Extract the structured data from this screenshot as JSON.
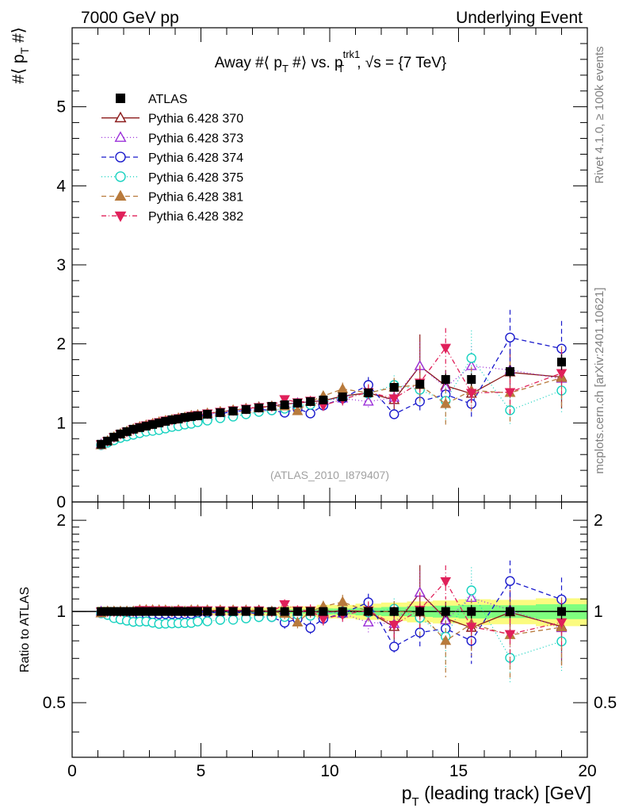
{
  "header": {
    "left": "7000 GeV pp",
    "right": "Underlying Event"
  },
  "side_labels": {
    "rivet": "Rivet 4.1.0, ≥ 100k events",
    "mcplots": "mcplots.cern.ch [arXiv:2401.10621]"
  },
  "chart_data": [
    {
      "type": "scatter",
      "panel": "main",
      "title": "Away #⟨ p_T #⟩ vs. p_T^trk1, √s = {7 TeV}",
      "title_parts": {
        "pre": "Away #⟨ p",
        "sub1": "T",
        "mid": " #⟩ vs. p",
        "sup2": "trk1",
        "sub2": "T",
        "post": ", √s = {7 TeV}"
      },
      "ylabel": "#⟨ p_T #⟩",
      "ylabel_parts": {
        "pre": "#⟨ p",
        "sub": "T",
        "post": " #⟩"
      },
      "watermark": "(ATLAS_2010_I879407)",
      "xlim": [
        0,
        20
      ],
      "ylim": [
        0,
        6
      ],
      "yticks": [
        0,
        1,
        2,
        3,
        4,
        5
      ],
      "x": [
        1.125,
        1.375,
        1.625,
        1.875,
        2.125,
        2.375,
        2.625,
        2.875,
        3.125,
        3.375,
        3.625,
        3.875,
        4.125,
        4.375,
        4.625,
        4.875,
        5.25,
        5.75,
        6.25,
        6.75,
        7.25,
        7.75,
        8.25,
        8.75,
        9.25,
        9.75,
        10.5,
        11.5,
        12.5,
        13.5,
        14.5,
        15.5,
        17.0,
        19.0
      ],
      "series": [
        {
          "name": "ATLAS",
          "color": "#000000",
          "marker": "square",
          "dash": "none",
          "line": false,
          "values": [
            0.73,
            0.77,
            0.82,
            0.86,
            0.89,
            0.92,
            0.94,
            0.96,
            0.98,
            1.0,
            1.02,
            1.04,
            1.05,
            1.07,
            1.08,
            1.09,
            1.11,
            1.13,
            1.15,
            1.17,
            1.19,
            1.21,
            1.23,
            1.25,
            1.27,
            1.29,
            1.33,
            1.38,
            1.45,
            1.49,
            1.55,
            1.55,
            1.65,
            1.77
          ],
          "errors": [
            0.01,
            0.01,
            0.01,
            0.01,
            0.01,
            0.01,
            0.01,
            0.01,
            0.01,
            0.01,
            0.01,
            0.01,
            0.01,
            0.01,
            0.01,
            0.01,
            0.01,
            0.01,
            0.01,
            0.01,
            0.01,
            0.01,
            0.02,
            0.02,
            0.02,
            0.03,
            0.03,
            0.04,
            0.05,
            0.06,
            0.07,
            0.08,
            0.08,
            0.1
          ]
        },
        {
          "name": "Pythia 6.428 370",
          "color": "#8b1a1a",
          "marker": "triangle-up-open",
          "dash": "none",
          "line": true,
          "values": [
            0.72,
            0.77,
            0.82,
            0.86,
            0.89,
            0.92,
            0.95,
            0.97,
            0.99,
            1.01,
            1.02,
            1.04,
            1.06,
            1.07,
            1.09,
            1.1,
            1.12,
            1.14,
            1.16,
            1.18,
            1.2,
            1.21,
            1.24,
            1.25,
            1.27,
            1.28,
            1.34,
            1.38,
            1.29,
            1.72,
            1.47,
            1.37,
            1.64,
            1.58
          ],
          "errors": [
            0.01,
            0.01,
            0.01,
            0.01,
            0.01,
            0.01,
            0.01,
            0.01,
            0.01,
            0.01,
            0.01,
            0.01,
            0.01,
            0.02,
            0.02,
            0.02,
            0.02,
            0.02,
            0.03,
            0.03,
            0.04,
            0.04,
            0.05,
            0.05,
            0.06,
            0.06,
            0.08,
            0.1,
            0.12,
            0.4,
            0.2,
            0.2,
            0.3,
            0.4
          ]
        },
        {
          "name": "Pythia 6.428 373",
          "color": "#9b30d9",
          "marker": "triangle-up-open",
          "dash": "1 3",
          "line": true,
          "values": [
            0.73,
            0.77,
            0.81,
            0.85,
            0.88,
            0.91,
            0.94,
            0.96,
            0.98,
            1.0,
            1.02,
            1.03,
            1.05,
            1.06,
            1.08,
            1.09,
            1.11,
            1.13,
            1.15,
            1.18,
            1.19,
            1.21,
            1.24,
            1.25,
            1.27,
            1.29,
            1.31,
            1.27,
            1.32,
            1.72,
            1.45,
            1.72,
            1.67,
            1.56
          ],
          "errors": [
            0.01,
            0.01,
            0.01,
            0.01,
            0.01,
            0.01,
            0.01,
            0.01,
            0.01,
            0.01,
            0.01,
            0.01,
            0.01,
            0.02,
            0.02,
            0.02,
            0.02,
            0.02,
            0.03,
            0.03,
            0.04,
            0.04,
            0.05,
            0.05,
            0.06,
            0.06,
            0.08,
            0.1,
            0.12,
            0.3,
            0.2,
            0.25,
            0.3,
            0.35
          ]
        },
        {
          "name": "Pythia 6.428 374",
          "color": "#1a1acc",
          "marker": "circle-open",
          "dash": "6 4",
          "line": true,
          "values": [
            0.72,
            0.76,
            0.8,
            0.84,
            0.87,
            0.9,
            0.92,
            0.94,
            0.96,
            0.98,
            1.0,
            1.02,
            1.03,
            1.05,
            1.06,
            1.08,
            1.1,
            1.12,
            1.14,
            1.16,
            1.17,
            1.16,
            1.13,
            1.18,
            1.12,
            1.22,
            1.31,
            1.48,
            1.11,
            1.27,
            1.36,
            1.24,
            2.08,
            1.94
          ],
          "errors": [
            0.01,
            0.01,
            0.01,
            0.01,
            0.01,
            0.01,
            0.01,
            0.01,
            0.01,
            0.01,
            0.01,
            0.01,
            0.01,
            0.02,
            0.02,
            0.02,
            0.02,
            0.02,
            0.03,
            0.03,
            0.04,
            0.04,
            0.05,
            0.05,
            0.06,
            0.06,
            0.08,
            0.1,
            0.06,
            0.15,
            0.18,
            0.2,
            0.35,
            0.35
          ]
        },
        {
          "name": "Pythia 6.428 375",
          "color": "#18d2c0",
          "marker": "circle-open",
          "dash": "1 3",
          "line": true,
          "values": [
            0.72,
            0.75,
            0.78,
            0.81,
            0.83,
            0.85,
            0.87,
            0.89,
            0.9,
            0.91,
            0.93,
            0.95,
            0.96,
            0.98,
            0.99,
            1.01,
            1.03,
            1.06,
            1.08,
            1.11,
            1.14,
            1.16,
            1.18,
            1.22,
            1.23,
            1.27,
            1.33,
            1.37,
            1.48,
            1.42,
            1.28,
            1.82,
            1.16,
            1.41
          ],
          "errors": [
            0.01,
            0.01,
            0.01,
            0.01,
            0.01,
            0.01,
            0.01,
            0.01,
            0.01,
            0.01,
            0.01,
            0.01,
            0.01,
            0.02,
            0.02,
            0.02,
            0.02,
            0.02,
            0.03,
            0.03,
            0.04,
            0.04,
            0.05,
            0.05,
            0.06,
            0.06,
            0.08,
            0.1,
            0.12,
            0.2,
            0.3,
            0.35,
            0.2,
            0.3
          ]
        },
        {
          "name": "Pythia 6.428 381",
          "color": "#b87a3c",
          "marker": "triangle-up-filled",
          "dash": "6 4",
          "line": true,
          "values": [
            0.72,
            0.77,
            0.82,
            0.86,
            0.89,
            0.92,
            0.95,
            0.97,
            0.99,
            1.01,
            1.03,
            1.04,
            1.06,
            1.07,
            1.09,
            1.1,
            1.12,
            1.14,
            1.16,
            1.18,
            1.19,
            1.21,
            1.21,
            1.15,
            1.27,
            1.34,
            1.43,
            1.38,
            1.45,
            1.48,
            1.24,
            1.41,
            1.38,
            1.57
          ],
          "errors": [
            0.01,
            0.01,
            0.01,
            0.01,
            0.01,
            0.01,
            0.01,
            0.01,
            0.01,
            0.01,
            0.01,
            0.01,
            0.01,
            0.02,
            0.02,
            0.02,
            0.02,
            0.02,
            0.03,
            0.03,
            0.04,
            0.04,
            0.05,
            0.05,
            0.06,
            0.06,
            0.08,
            0.1,
            0.12,
            0.25,
            0.3,
            0.3,
            0.4,
            0.4
          ]
        },
        {
          "name": "Pythia 6.428 382",
          "color": "#e0205a",
          "marker": "triangle-down-filled",
          "dash": "6 3 1 3",
          "line": true,
          "values": [
            0.73,
            0.77,
            0.82,
            0.86,
            0.89,
            0.92,
            0.95,
            0.97,
            0.99,
            1.01,
            1.03,
            1.04,
            1.06,
            1.07,
            1.09,
            1.1,
            1.12,
            1.14,
            1.16,
            1.18,
            1.2,
            1.21,
            1.3,
            1.26,
            1.28,
            1.22,
            1.3,
            1.39,
            1.31,
            1.51,
            1.95,
            1.38,
            1.39,
            1.63
          ],
          "errors": [
            0.01,
            0.01,
            0.01,
            0.01,
            0.01,
            0.01,
            0.01,
            0.01,
            0.01,
            0.01,
            0.01,
            0.01,
            0.01,
            0.02,
            0.02,
            0.02,
            0.02,
            0.02,
            0.03,
            0.03,
            0.04,
            0.04,
            0.05,
            0.05,
            0.06,
            0.06,
            0.08,
            0.1,
            0.12,
            0.2,
            0.25,
            0.2,
            0.3,
            0.3
          ]
        }
      ]
    },
    {
      "type": "scatter",
      "panel": "ratio",
      "ylabel": "Ratio to ATLAS",
      "xlabel": "p_T (leading track) [GeV]",
      "xlabel_parts": {
        "pre": "p",
        "sub": "T",
        "post": " (leading track) [GeV]"
      },
      "xlim": [
        0,
        20
      ],
      "ylim": [
        0.33,
        2.3
      ],
      "yscale": "log",
      "yticks": [
        0.5,
        1,
        2
      ],
      "ytick_labels": [
        "0.5",
        "1",
        "2"
      ],
      "xticks": [
        0,
        5,
        10,
        15,
        20
      ],
      "xtick_labels": [
        "0",
        "5",
        "10",
        "15",
        "20"
      ],
      "band_inner_color": "#7fff7f",
      "band_outer_color": "#fbfb7f"
    }
  ]
}
